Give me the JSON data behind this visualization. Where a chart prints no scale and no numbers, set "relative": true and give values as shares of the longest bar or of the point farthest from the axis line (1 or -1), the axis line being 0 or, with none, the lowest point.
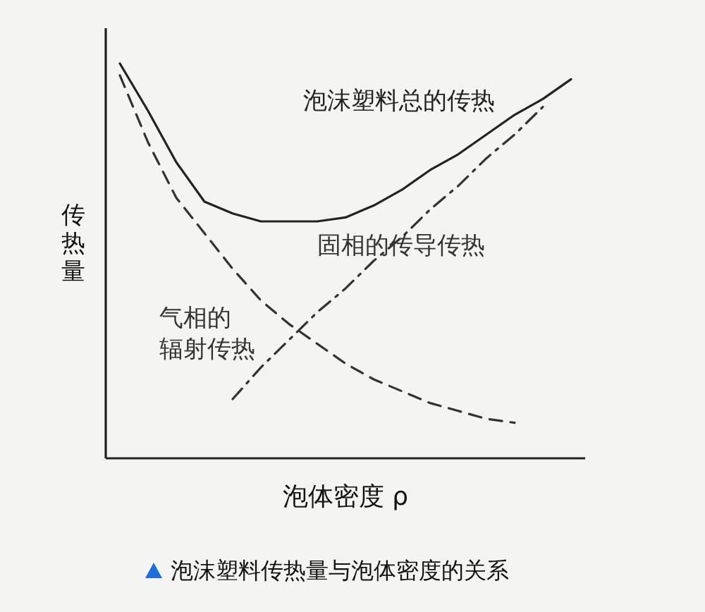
{
  "chart_data": {
    "type": "line",
    "relative": true,
    "xlabel": "泡体密度 ρ",
    "ylabel": "传热量",
    "annotations": [
      "泡沫塑料传热量与泡体密度的关系"
    ],
    "categories": [
      null,
      null,
      null,
      null,
      null,
      null,
      null,
      null,
      null,
      null,
      null,
      null,
      null,
      null,
      null,
      null,
      null
    ],
    "series": [
      {
        "name": "泡沫塑料总的传热",
        "color": "#222222",
        "line_style": "solid",
        "values": [
          1,
          0.88,
          0.75,
          0.65,
          0.62,
          0.6,
          0.6,
          0.6,
          0.61,
          0.64,
          0.68,
          0.73,
          0.77,
          0.82,
          0.87,
          0.91,
          0.96
        ]
      },
      {
        "name": "气相的辐射传热",
        "color": "#333333",
        "line_style": "dashed",
        "values": [
          0.97,
          0.8,
          0.66,
          0.57,
          0.48,
          0.4,
          0.34,
          0.29,
          0.24,
          0.2,
          0.17,
          0.14,
          0.12,
          0.1,
          0.09,
          null,
          null
        ]
      },
      {
        "name": "固相的传导传热",
        "color": "#333333",
        "line_style": "dashdot",
        "values": [
          null,
          null,
          null,
          null,
          0.15,
          0.23,
          0.3,
          0.37,
          0.43,
          0.5,
          0.56,
          0.63,
          0.69,
          0.76,
          0.82,
          0.89,
          null
        ]
      }
    ]
  }
}
